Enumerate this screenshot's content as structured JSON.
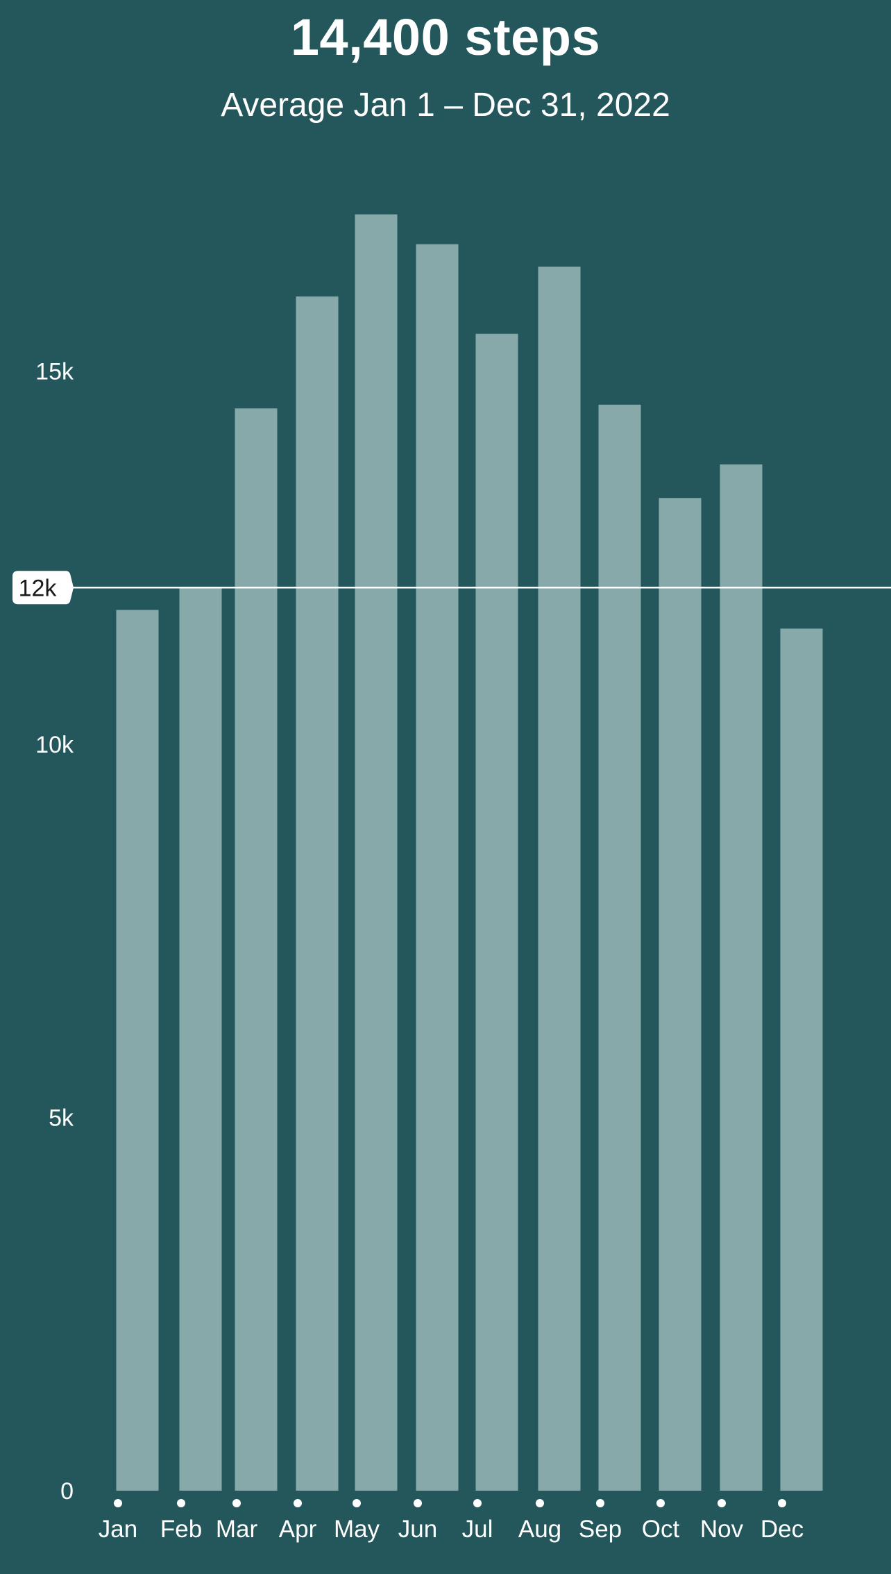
{
  "colors": {
    "background": "#24575c",
    "bar": "#87a9aa",
    "text": "#ffffff",
    "average_line": "#ffffff",
    "average_badge": "#ffffff",
    "average_badge_text": "#1a1a1a"
  },
  "header": {
    "title": "14,400 steps",
    "subtitle": "Average Jan 1 – Dec 31, 2022"
  },
  "chart_data": {
    "type": "bar",
    "title": "14,400 steps",
    "subtitle": "Average Jan 1 – Dec 31, 2022",
    "categories": [
      "Jan",
      "Feb",
      "Mar",
      "Apr",
      "May",
      "Jun",
      "Jul",
      "Aug",
      "Sep",
      "Oct",
      "Nov",
      "Dec"
    ],
    "values": [
      11800,
      12100,
      14500,
      16000,
      17100,
      16700,
      15500,
      16400,
      14550,
      13300,
      13750,
      11550
    ],
    "ylim": [
      0,
      18000
    ],
    "yticks": [
      {
        "value": 0,
        "label": "0"
      },
      {
        "value": 5000,
        "label": "5k"
      },
      {
        "value": 10000,
        "label": "10k"
      },
      {
        "value": 15000,
        "label": "15k"
      }
    ],
    "reference_line": {
      "value": 12100,
      "label": "12k"
    },
    "xlabel": "",
    "ylabel": "",
    "grid": false,
    "legend": "none"
  }
}
